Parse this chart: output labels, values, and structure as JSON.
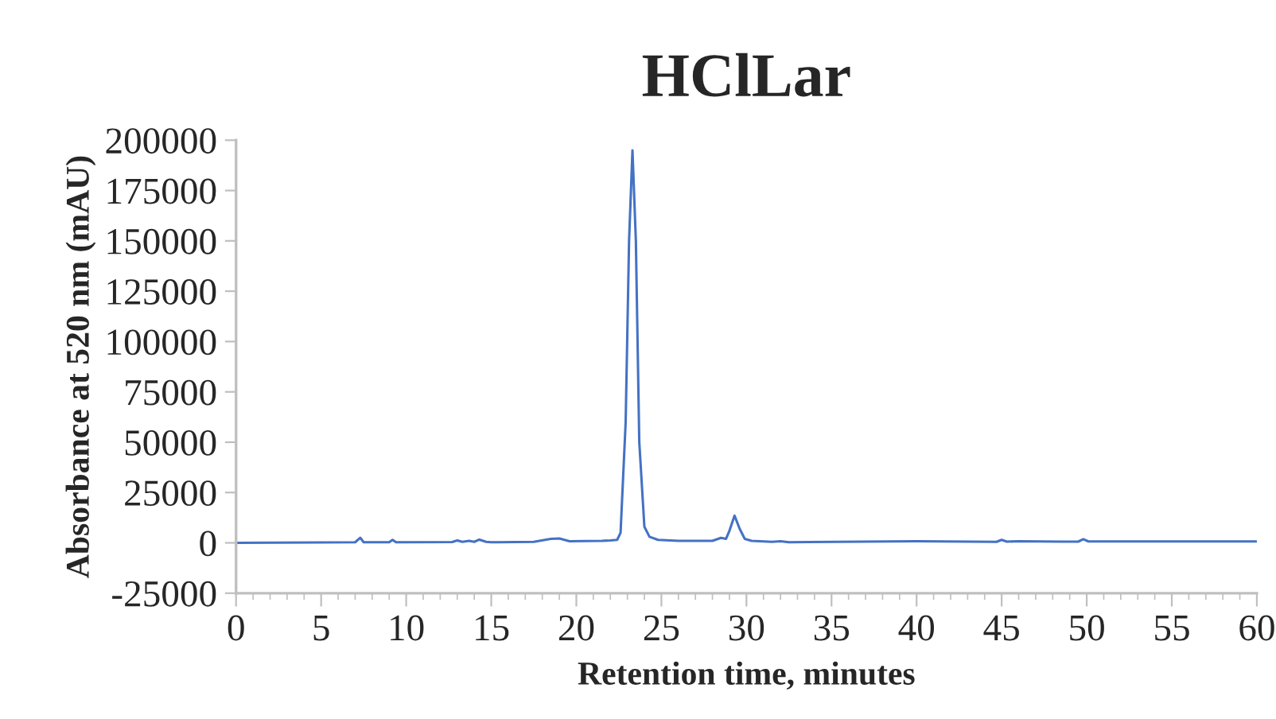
{
  "chart_data": {
    "type": "line",
    "title": "HClLar",
    "xlabel": "Retention time, minutes",
    "ylabel": "Absorbance at 520 nm (mAU)",
    "series": [
      {
        "color": "#4472c4",
        "x": [
          0,
          5,
          7.0,
          7.3,
          7.5,
          9.0,
          9.2,
          9.4,
          12.7,
          13,
          13.3,
          13.7,
          14,
          14.3,
          14.7,
          15,
          15.4,
          17.5,
          18.5,
          19,
          19.6,
          21.5,
          22,
          22.4,
          22.6,
          22.9,
          23.1,
          23.3,
          23.5,
          23.7,
          24.0,
          24.3,
          24.8,
          26,
          28,
          28.5,
          28.8,
          29.0,
          29.3,
          29.6,
          29.9,
          30.3,
          31.5,
          32,
          32.5,
          40,
          44.7,
          45,
          45.3,
          46,
          48.5,
          49.5,
          49.8,
          50.1,
          55,
          60
        ],
        "values": [
          0,
          200,
          300,
          2500,
          300,
          300,
          1500,
          300,
          400,
          1200,
          500,
          1000,
          500,
          1600,
          500,
          300,
          300,
          500,
          2000,
          2200,
          800,
          1000,
          1200,
          1500,
          5000,
          60000,
          150000,
          195000,
          150000,
          50000,
          8000,
          3000,
          1500,
          1000,
          1000,
          2500,
          2000,
          6000,
          13500,
          7000,
          2000,
          1000,
          500,
          800,
          300,
          800,
          500,
          1500,
          600,
          800,
          600,
          600,
          1800,
          700,
          700,
          700
        ]
      }
    ],
    "xlim": [
      0,
      60
    ],
    "xticks": [
      0,
      5,
      10,
      15,
      20,
      25,
      30,
      35,
      40,
      45,
      50,
      55,
      60
    ],
    "ylim": [
      -25000,
      200000
    ],
    "yticks": [
      -25000,
      0,
      25000,
      50000,
      75000,
      100000,
      125000,
      150000,
      175000,
      200000
    ],
    "grid": false,
    "legend": false,
    "marker": "none",
    "line_style": "solid"
  }
}
